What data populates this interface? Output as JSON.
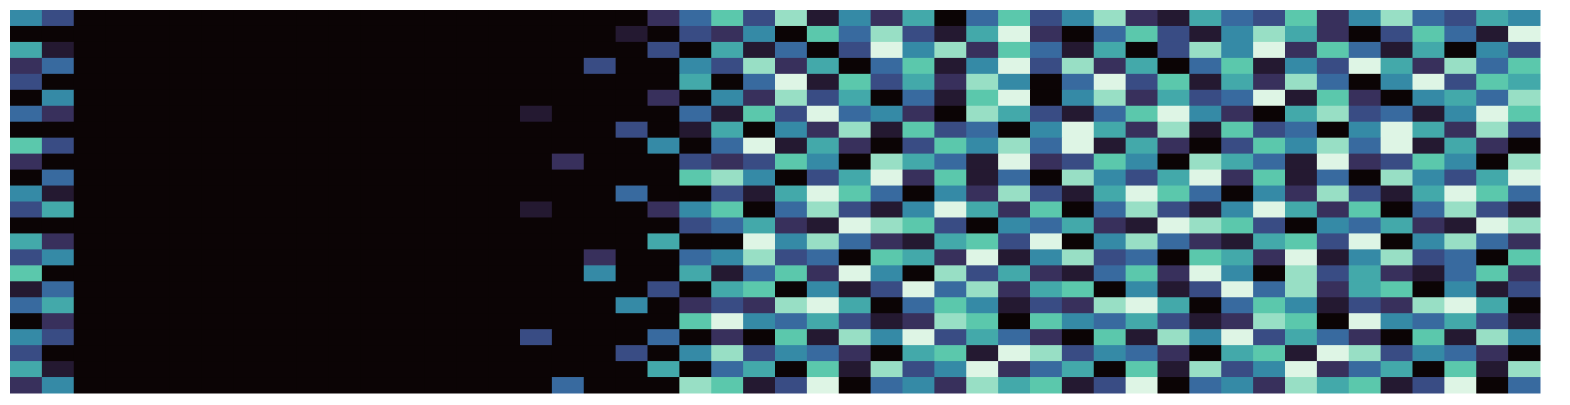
{
  "chart_data": {
    "type": "heatmap",
    "zlim": [
      0,
      9
    ],
    "colormap": [
      "#0b0405",
      "#382a54",
      "#395d9c",
      "#3497a9",
      "#60ceac",
      "#def5e5"
    ],
    "values": [
      [
        5,
        3,
        0,
        0,
        0,
        0,
        0,
        0,
        0,
        0,
        0,
        0,
        0,
        0,
        0,
        0,
        0,
        0,
        0,
        0,
        2,
        4,
        7,
        3,
        8,
        1,
        5,
        2,
        6,
        0,
        4,
        7,
        3,
        5,
        8,
        2,
        1,
        6,
        4,
        3,
        7,
        2,
        5,
        8,
        4,
        3,
        6,
        5
      ],
      [
        0,
        0,
        0,
        0,
        0,
        0,
        0,
        0,
        0,
        0,
        0,
        0,
        0,
        0,
        0,
        0,
        0,
        0,
        0,
        1,
        0,
        3,
        2,
        5,
        0,
        7,
        4,
        8,
        3,
        1,
        6,
        9,
        2,
        0,
        4,
        7,
        3,
        1,
        5,
        8,
        6,
        2,
        0,
        3,
        7,
        4,
        1,
        9
      ],
      [
        6,
        1,
        0,
        0,
        0,
        0,
        0,
        0,
        0,
        0,
        0,
        0,
        0,
        0,
        0,
        0,
        0,
        0,
        0,
        0,
        3,
        0,
        6,
        1,
        4,
        0,
        3,
        9,
        5,
        8,
        2,
        7,
        4,
        1,
        6,
        0,
        3,
        8,
        5,
        9,
        2,
        7,
        4,
        1,
        6,
        0,
        5,
        3
      ],
      [
        2,
        4,
        0,
        0,
        0,
        0,
        0,
        0,
        0,
        0,
        0,
        0,
        0,
        0,
        0,
        0,
        0,
        0,
        3,
        0,
        0,
        5,
        3,
        8,
        2,
        6,
        0,
        4,
        7,
        1,
        5,
        9,
        3,
        8,
        2,
        6,
        0,
        4,
        7,
        1,
        5,
        3,
        9,
        6,
        2,
        8,
        4,
        7
      ],
      [
        3,
        0,
        0,
        0,
        0,
        0,
        0,
        0,
        0,
        0,
        0,
        0,
        0,
        0,
        0,
        0,
        0,
        0,
        0,
        0,
        0,
        6,
        0,
        4,
        9,
        1,
        7,
        3,
        6,
        2,
        8,
        5,
        0,
        4,
        9,
        3,
        7,
        1,
        6,
        2,
        8,
        4,
        0,
        5,
        9,
        3,
        7,
        6
      ],
      [
        0,
        5,
        0,
        0,
        0,
        0,
        0,
        0,
        0,
        0,
        0,
        0,
        0,
        0,
        0,
        0,
        0,
        0,
        0,
        0,
        2,
        0,
        5,
        2,
        8,
        3,
        6,
        0,
        4,
        1,
        7,
        9,
        0,
        5,
        8,
        2,
        6,
        3,
        4,
        9,
        1,
        7,
        2,
        0,
        5,
        6,
        4,
        8
      ],
      [
        4,
        2,
        0,
        0,
        0,
        0,
        0,
        0,
        0,
        0,
        0,
        0,
        0,
        0,
        0,
        0,
        1,
        0,
        0,
        0,
        0,
        4,
        1,
        7,
        3,
        9,
        4,
        5,
        2,
        0,
        8,
        6,
        3,
        1,
        4,
        7,
        9,
        5,
        2,
        0,
        6,
        8,
        3,
        4,
        1,
        5,
        9,
        7
      ],
      [
        0,
        0,
        0,
        0,
        0,
        0,
        0,
        0,
        0,
        0,
        0,
        0,
        0,
        0,
        0,
        0,
        0,
        0,
        0,
        3,
        0,
        1,
        6,
        0,
        5,
        2,
        8,
        1,
        7,
        3,
        4,
        0,
        5,
        9,
        6,
        2,
        8,
        1,
        7,
        3,
        4,
        0,
        5,
        9,
        6,
        2,
        8,
        3
      ],
      [
        7,
        3,
        0,
        0,
        0,
        0,
        0,
        0,
        0,
        0,
        0,
        0,
        0,
        0,
        0,
        0,
        0,
        0,
        0,
        0,
        5,
        0,
        4,
        9,
        1,
        6,
        2,
        0,
        3,
        7,
        5,
        8,
        4,
        9,
        1,
        6,
        2,
        0,
        3,
        7,
        5,
        8,
        4,
        9,
        1,
        6,
        2,
        0
      ],
      [
        2,
        0,
        0,
        0,
        0,
        0,
        0,
        0,
        0,
        0,
        0,
        0,
        0,
        0,
        0,
        0,
        0,
        2,
        0,
        0,
        0,
        3,
        2,
        3,
        7,
        5,
        0,
        8,
        6,
        4,
        1,
        9,
        2,
        3,
        7,
        5,
        0,
        8,
        6,
        4,
        1,
        9,
        2,
        3,
        7,
        5,
        0,
        8
      ],
      [
        0,
        4,
        0,
        0,
        0,
        0,
        0,
        0,
        0,
        0,
        0,
        0,
        0,
        0,
        0,
        0,
        0,
        0,
        0,
        0,
        0,
        7,
        8,
        5,
        0,
        3,
        6,
        9,
        2,
        7,
        1,
        4,
        0,
        8,
        5,
        3,
        6,
        9,
        2,
        7,
        1,
        4,
        0,
        8,
        5,
        3,
        6,
        9
      ],
      [
        5,
        1,
        0,
        0,
        0,
        0,
        0,
        0,
        0,
        0,
        0,
        0,
        0,
        0,
        0,
        0,
        0,
        0,
        0,
        4,
        0,
        0,
        3,
        1,
        6,
        9,
        7,
        4,
        0,
        5,
        2,
        8,
        3,
        1,
        6,
        9,
        7,
        4,
        0,
        5,
        2,
        8,
        3,
        1,
        6,
        9,
        7,
        4
      ],
      [
        3,
        6,
        0,
        0,
        0,
        0,
        0,
        0,
        0,
        0,
        0,
        0,
        0,
        0,
        0,
        0,
        1,
        0,
        0,
        0,
        2,
        5,
        7,
        0,
        4,
        8,
        3,
        1,
        5,
        9,
        6,
        2,
        7,
        0,
        4,
        8,
        3,
        1,
        5,
        9,
        6,
        2,
        7,
        0,
        4,
        8,
        3,
        1
      ],
      [
        0,
        0,
        0,
        0,
        0,
        0,
        0,
        0,
        0,
        0,
        0,
        0,
        0,
        0,
        0,
        0,
        0,
        0,
        0,
        0,
        0,
        3,
        4,
        6,
        2,
        1,
        9,
        8,
        7,
        3,
        0,
        5,
        4,
        6,
        2,
        1,
        9,
        8,
        7,
        3,
        0,
        5,
        4,
        6,
        2,
        1,
        9,
        8
      ],
      [
        6,
        2,
        0,
        0,
        0,
        0,
        0,
        0,
        0,
        0,
        0,
        0,
        0,
        0,
        0,
        0,
        0,
        0,
        0,
        0,
        6,
        0,
        0,
        9,
        5,
        8,
        4,
        2,
        1,
        6,
        7,
        3,
        9,
        0,
        5,
        8,
        4,
        2,
        1,
        6,
        7,
        3,
        9,
        0,
        5,
        8,
        4,
        2
      ],
      [
        3,
        5,
        0,
        0,
        0,
        0,
        0,
        0,
        0,
        0,
        0,
        0,
        0,
        0,
        0,
        0,
        0,
        0,
        2,
        0,
        0,
        4,
        5,
        8,
        3,
        4,
        0,
        7,
        6,
        2,
        9,
        1,
        5,
        8,
        3,
        4,
        0,
        7,
        6,
        2,
        9,
        1,
        5,
        8,
        3,
        4,
        0,
        7
      ],
      [
        7,
        0,
        0,
        0,
        0,
        0,
        0,
        0,
        0,
        0,
        0,
        0,
        0,
        0,
        0,
        0,
        0,
        0,
        5,
        0,
        0,
        6,
        1,
        4,
        7,
        2,
        9,
        5,
        0,
        8,
        3,
        6,
        2,
        1,
        4,
        7,
        2,
        9,
        5,
        0,
        8,
        3,
        6,
        2,
        1,
        4,
        7,
        2
      ],
      [
        1,
        4,
        0,
        0,
        0,
        0,
        0,
        0,
        0,
        0,
        0,
        0,
        0,
        0,
        0,
        0,
        0,
        0,
        0,
        0,
        3,
        0,
        6,
        7,
        0,
        5,
        1,
        3,
        9,
        4,
        8,
        2,
        6,
        7,
        0,
        5,
        1,
        3,
        9,
        4,
        8,
        2,
        6,
        7,
        0,
        5,
        1,
        3
      ],
      [
        4,
        6,
        0,
        0,
        0,
        0,
        0,
        0,
        0,
        0,
        0,
        0,
        0,
        0,
        0,
        0,
        0,
        0,
        0,
        5,
        0,
        2,
        3,
        2,
        8,
        9,
        6,
        0,
        4,
        7,
        5,
        1,
        3,
        2,
        8,
        9,
        6,
        0,
        4,
        7,
        5,
        1,
        3,
        2,
        8,
        9,
        6,
        0
      ],
      [
        0,
        2,
        0,
        0,
        0,
        0,
        0,
        0,
        0,
        0,
        0,
        0,
        0,
        0,
        0,
        0,
        0,
        0,
        0,
        0,
        0,
        7,
        9,
        5,
        4,
        6,
        3,
        1,
        2,
        8,
        7,
        0,
        7,
        5,
        4,
        6,
        3,
        1,
        2,
        8,
        7,
        0,
        9,
        5,
        4,
        6,
        3,
        1
      ],
      [
        5,
        3,
        0,
        0,
        0,
        0,
        0,
        0,
        0,
        0,
        0,
        0,
        0,
        0,
        0,
        0,
        3,
        0,
        0,
        0,
        4,
        0,
        2,
        0,
        7,
        1,
        8,
        5,
        9,
        3,
        6,
        4,
        2,
        0,
        7,
        1,
        8,
        5,
        9,
        3,
        6,
        4,
        2,
        0,
        7,
        1,
        8,
        5
      ],
      [
        3,
        0,
        0,
        0,
        0,
        0,
        0,
        0,
        0,
        0,
        0,
        0,
        0,
        0,
        0,
        0,
        0,
        0,
        0,
        3,
        0,
        5,
        8,
        3,
        5,
        4,
        2,
        0,
        6,
        7,
        1,
        9,
        8,
        3,
        5,
        4,
        2,
        0,
        6,
        7,
        1,
        9,
        8,
        3,
        5,
        4,
        2,
        0
      ],
      [
        6,
        1,
        0,
        0,
        0,
        0,
        0,
        0,
        0,
        0,
        0,
        0,
        0,
        0,
        0,
        0,
        0,
        0,
        0,
        0,
        6,
        0,
        4,
        6,
        0,
        7,
        1,
        8,
        3,
        5,
        9,
        2,
        4,
        6,
        0,
        7,
        1,
        8,
        3,
        5,
        9,
        2,
        4,
        6,
        0,
        7,
        1,
        8
      ],
      [
        2,
        5,
        0,
        0,
        0,
        0,
        0,
        0,
        0,
        0,
        0,
        0,
        0,
        0,
        0,
        0,
        0,
        4,
        0,
        0,
        0,
        8,
        7,
        1,
        3,
        9,
        0,
        4,
        5,
        2,
        8,
        6,
        7,
        1,
        3,
        9,
        0,
        4,
        5,
        2,
        8,
        6,
        7,
        1,
        3,
        9,
        0,
        4
      ]
    ]
  }
}
